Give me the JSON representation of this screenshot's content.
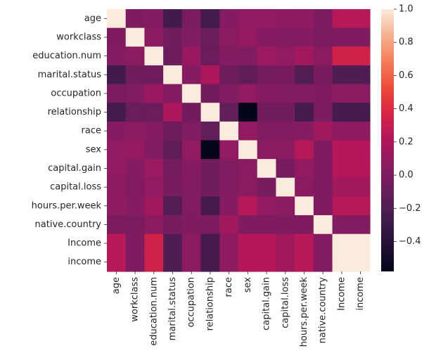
{
  "chart_data": {
    "type": "heatmap",
    "title": "",
    "xlabel": "",
    "ylabel": "",
    "rows": [
      "age",
      "workclass",
      "education.num",
      "marital.status",
      "occupation",
      "relationship",
      "race",
      "sex",
      "capital.gain",
      "capital.loss",
      "hours.per.week",
      "native.country",
      "Income",
      "income"
    ],
    "columns": [
      "age",
      "workclass",
      "education.num",
      "marital.status",
      "occupation",
      "relationship",
      "race",
      "sex",
      "capital.gain",
      "capital.loss",
      "hours.per.week",
      "native.country",
      "Income",
      "income"
    ],
    "values": [
      [
        1.0,
        0.0,
        0.03,
        -0.27,
        -0.01,
        -0.26,
        0.03,
        0.09,
        0.08,
        0.06,
        0.07,
        -0.01,
        0.23,
        0.23
      ],
      [
        0.0,
        1.0,
        0.05,
        -0.06,
        0.01,
        -0.09,
        0.05,
        0.1,
        0.03,
        0.02,
        0.04,
        -0.01,
        0.0,
        0.0
      ],
      [
        0.03,
        0.05,
        1.0,
        -0.07,
        0.11,
        -0.09,
        0.03,
        0.01,
        0.12,
        0.08,
        0.15,
        0.05,
        0.34,
        0.34
      ],
      [
        -0.27,
        -0.06,
        -0.07,
        1.0,
        0.04,
        0.19,
        -0.07,
        -0.13,
        -0.04,
        -0.03,
        -0.19,
        -0.02,
        -0.2,
        -0.2
      ],
      [
        -0.01,
        0.01,
        0.11,
        0.04,
        1.0,
        -0.05,
        0.01,
        0.08,
        0.03,
        0.02,
        0.02,
        0.0,
        0.05,
        0.05
      ],
      [
        -0.26,
        -0.09,
        -0.09,
        0.19,
        -0.05,
        1.0,
        -0.12,
        -0.58,
        -0.06,
        -0.06,
        -0.25,
        -0.01,
        -0.25,
        -0.25
      ],
      [
        0.03,
        0.05,
        0.03,
        -0.07,
        0.01,
        -0.12,
        1.0,
        0.09,
        0.01,
        0.02,
        0.04,
        0.14,
        0.07,
        0.07
      ],
      [
        0.09,
        0.1,
        0.01,
        -0.13,
        0.08,
        -0.58,
        0.09,
        1.0,
        0.05,
        0.05,
        0.23,
        0.0,
        0.22,
        0.22
      ],
      [
        0.08,
        0.03,
        0.12,
        -0.04,
        0.03,
        -0.06,
        0.01,
        0.05,
        1.0,
        -0.03,
        0.08,
        0.0,
        0.22,
        0.22
      ],
      [
        0.06,
        0.02,
        0.08,
        -0.03,
        0.02,
        -0.06,
        0.02,
        0.05,
        -0.03,
        1.0,
        0.05,
        0.0,
        0.15,
        0.15
      ],
      [
        0.07,
        0.04,
        0.15,
        -0.19,
        0.02,
        -0.25,
        0.04,
        0.23,
        0.08,
        0.05,
        1.0,
        0.0,
        0.23,
        0.23
      ],
      [
        -0.01,
        -0.01,
        0.05,
        -0.02,
        0.0,
        -0.01,
        0.14,
        0.0,
        0.0,
        0.0,
        0.0,
        1.0,
        0.02,
        0.02
      ],
      [
        0.23,
        0.0,
        0.34,
        -0.2,
        0.05,
        -0.25,
        0.07,
        0.22,
        0.22,
        0.15,
        0.23,
        0.02,
        1.0,
        1.0
      ],
      [
        0.23,
        0.0,
        0.34,
        -0.2,
        0.05,
        -0.25,
        0.07,
        0.22,
        0.22,
        0.15,
        0.23,
        0.02,
        1.0,
        1.0
      ]
    ],
    "colorbar": {
      "range": [
        -0.58,
        1.0
      ],
      "ticks": [
        1.0,
        0.8,
        0.6,
        0.4,
        0.2,
        0.0,
        -0.2,
        -0.4
      ],
      "tick_labels": [
        "1.0",
        "0.8",
        "0.6",
        "0.4",
        "0.2",
        "0.0",
        "−0.2",
        "−0.4"
      ],
      "colormap": "rocket"
    },
    "grid": false,
    "legend": "colorbar-right"
  }
}
